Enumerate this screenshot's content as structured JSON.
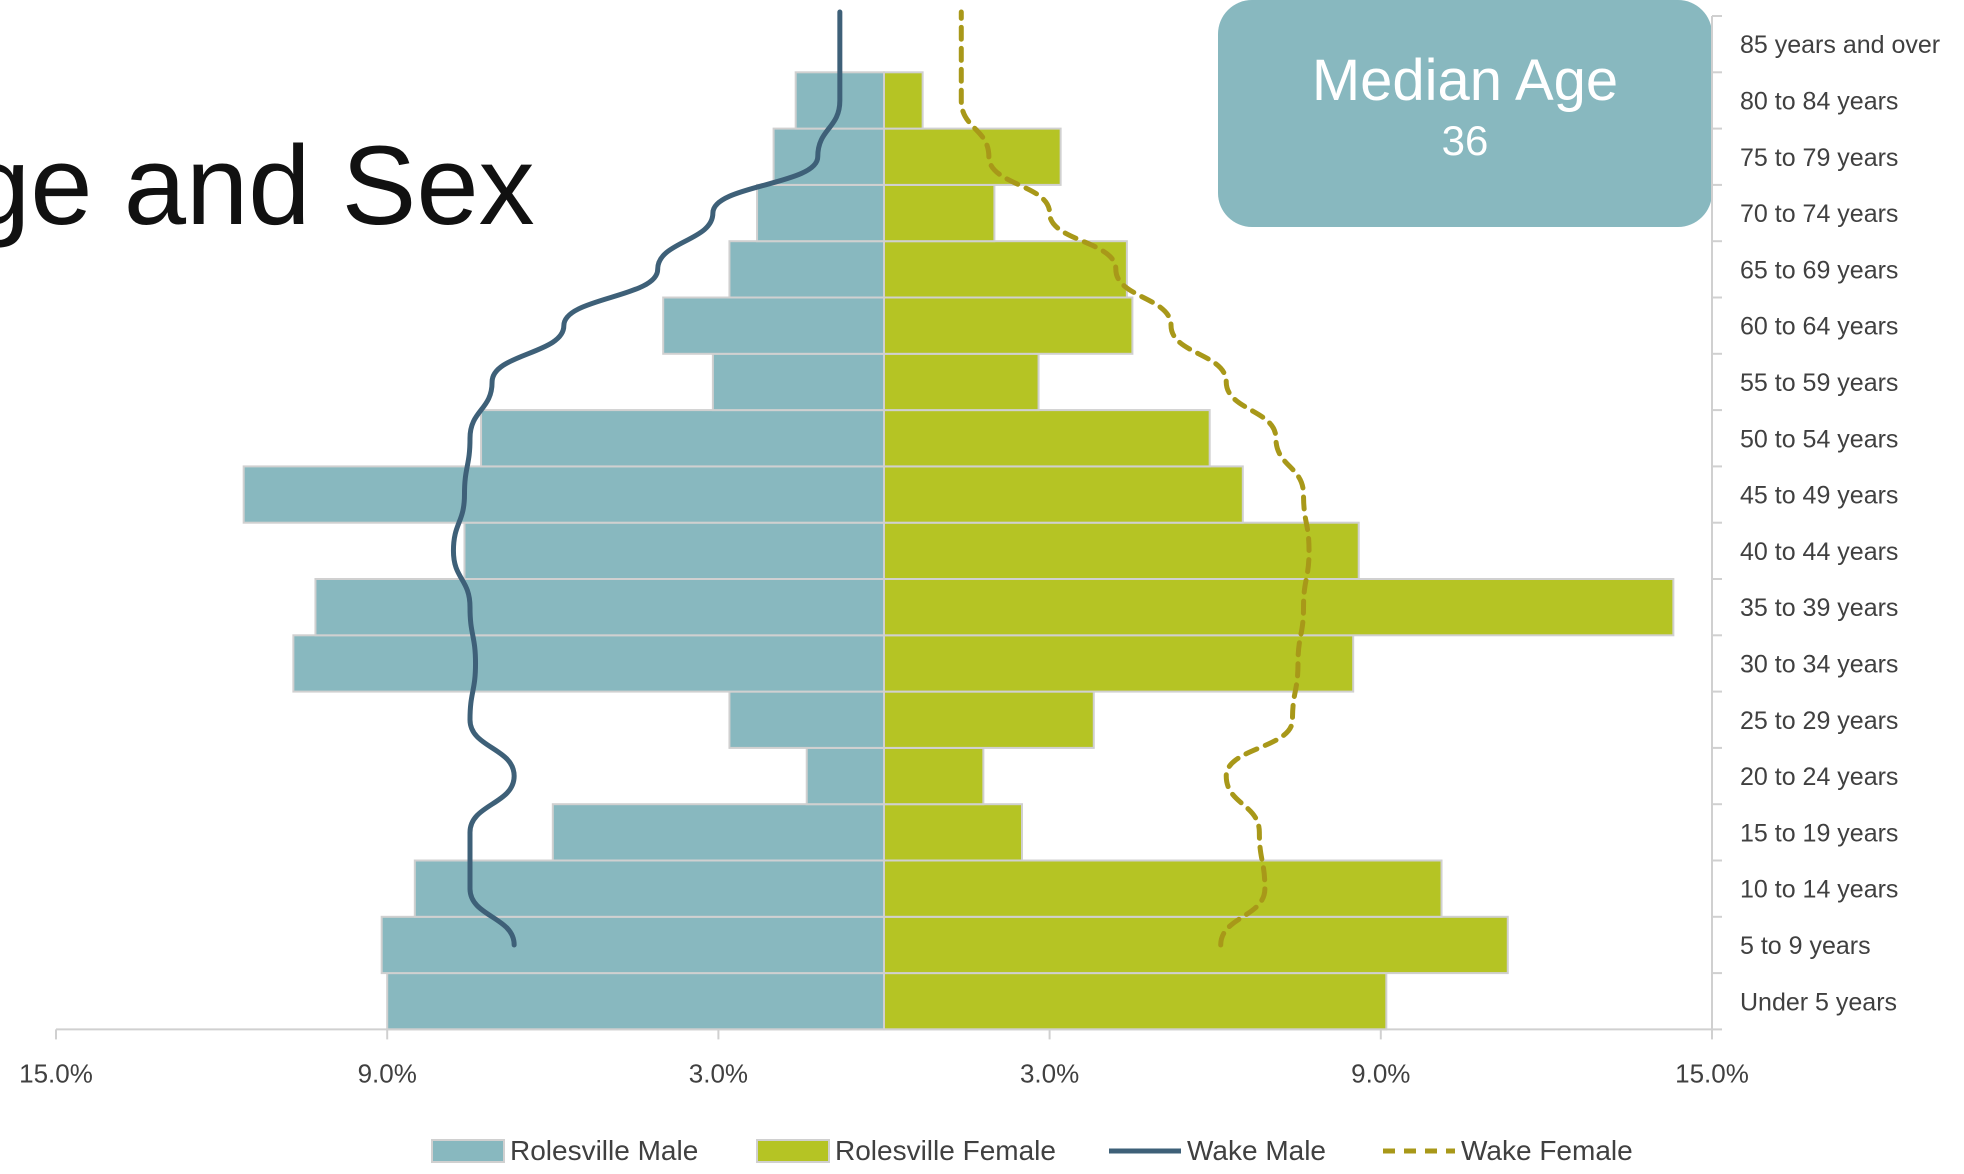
{
  "page_title": "ge and Sex",
  "median_age": {
    "label": "Median Age",
    "value": "36"
  },
  "chart_data": {
    "type": "bar",
    "orientation": "horizontal",
    "categories": [
      "Under 5 years",
      "5 to 9 years",
      "10 to 14 years",
      "15 to 19 years",
      "20 to 24 years",
      "25 to 29 years",
      "30 to 34 years",
      "35 to 39 years",
      "40 to 44 years",
      "45 to 49 years",
      "50 to 54 years",
      "55 to 59 years",
      "60 to 64 years",
      "65 to 69 years",
      "70 to 74 years",
      "75 to 79 years",
      "80 to 84 years",
      "85 years and over"
    ],
    "series": [
      {
        "name": "Rolesville Male",
        "kind": "bar",
        "side": "left",
        "color": "#88b8bf",
        "values": [
          9.0,
          9.1,
          8.5,
          6.0,
          1.4,
          2.8,
          10.7,
          10.3,
          7.6,
          11.6,
          7.3,
          3.1,
          4.0,
          2.8,
          2.3,
          2.0,
          1.6,
          0
        ]
      },
      {
        "name": "Rolesville Female",
        "kind": "bar",
        "side": "right",
        "color": "#b5c424",
        "values": [
          9.1,
          11.3,
          10.1,
          2.5,
          1.8,
          3.8,
          8.5,
          14.3,
          8.6,
          6.5,
          5.9,
          2.8,
          4.5,
          4.4,
          2.0,
          3.2,
          0.7,
          0
        ]
      },
      {
        "name": "Wake Male",
        "kind": "line",
        "side": "left",
        "color": "#3e6078",
        "dash": "solid",
        "values": [
          null,
          6.7,
          7.5,
          7.5,
          6.7,
          7.5,
          7.4,
          7.5,
          7.8,
          7.6,
          7.5,
          7.1,
          5.8,
          4.1,
          3.1,
          1.2,
          0.8,
          0.8
        ]
      },
      {
        "name": "Wake Female",
        "kind": "line",
        "side": "right",
        "color": "#a89819",
        "dash": "dashed",
        "values": [
          null,
          6.1,
          6.9,
          6.8,
          6.2,
          7.4,
          7.5,
          7.6,
          7.7,
          7.6,
          7.1,
          6.2,
          5.2,
          4.2,
          3.0,
          1.9,
          1.4,
          1.4
        ]
      }
    ],
    "xlim": [
      -15,
      15
    ],
    "xticks": [
      "15.0%",
      "9.0%",
      "3.0%",
      "3.0%",
      "9.0%",
      "15.0%"
    ],
    "xtick_values": [
      -15,
      -9,
      -3,
      3,
      9,
      15
    ],
    "legend_position": "bottom",
    "grid": false
  }
}
